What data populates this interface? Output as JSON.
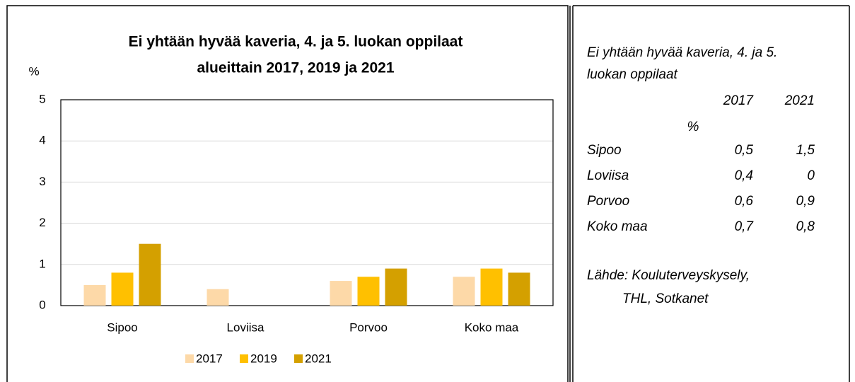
{
  "chart_data": {
    "type": "bar",
    "title": [
      "Ei yhtään hyvää kaveria, 4. ja 5. luokan oppilaat",
      "alueittain 2017, 2019 ja 2021"
    ],
    "y_label": "%",
    "categories": [
      "Sipoo",
      "Loviisa",
      "Porvoo",
      "Koko maa"
    ],
    "series": [
      {
        "name": "2017",
        "color": "#fdd9a8",
        "values": [
          0.5,
          0.4,
          0.6,
          0.7
        ]
      },
      {
        "name": "2019",
        "color": "#ffc000",
        "values": [
          0.8,
          null,
          0.7,
          0.9
        ]
      },
      {
        "name": "2021",
        "color": "#d4a000",
        "values": [
          1.5,
          0,
          0.9,
          0.8
        ]
      }
    ],
    "ylim": [
      0,
      5
    ],
    "yticks": [
      0,
      1,
      2,
      3,
      4,
      5
    ],
    "grid": true,
    "legend": "bottom"
  },
  "side_panel": {
    "title": [
      "Ei yhtään hyvää kaveria, 4. ja 5.",
      "luokan oppilaat"
    ],
    "columns": [
      "2017",
      "2021"
    ],
    "unit": "%",
    "rows": [
      [
        "Sipoo",
        "0,5",
        "1,5"
      ],
      [
        "Loviisa",
        "0,4",
        "0"
      ],
      [
        "Porvoo",
        "0,6",
        "0,9"
      ],
      [
        "Koko maa",
        "0,7",
        "0,8"
      ]
    ],
    "source": [
      "Lähde: Kouluterveyskysely,",
      "THL, Sotkanet"
    ]
  }
}
